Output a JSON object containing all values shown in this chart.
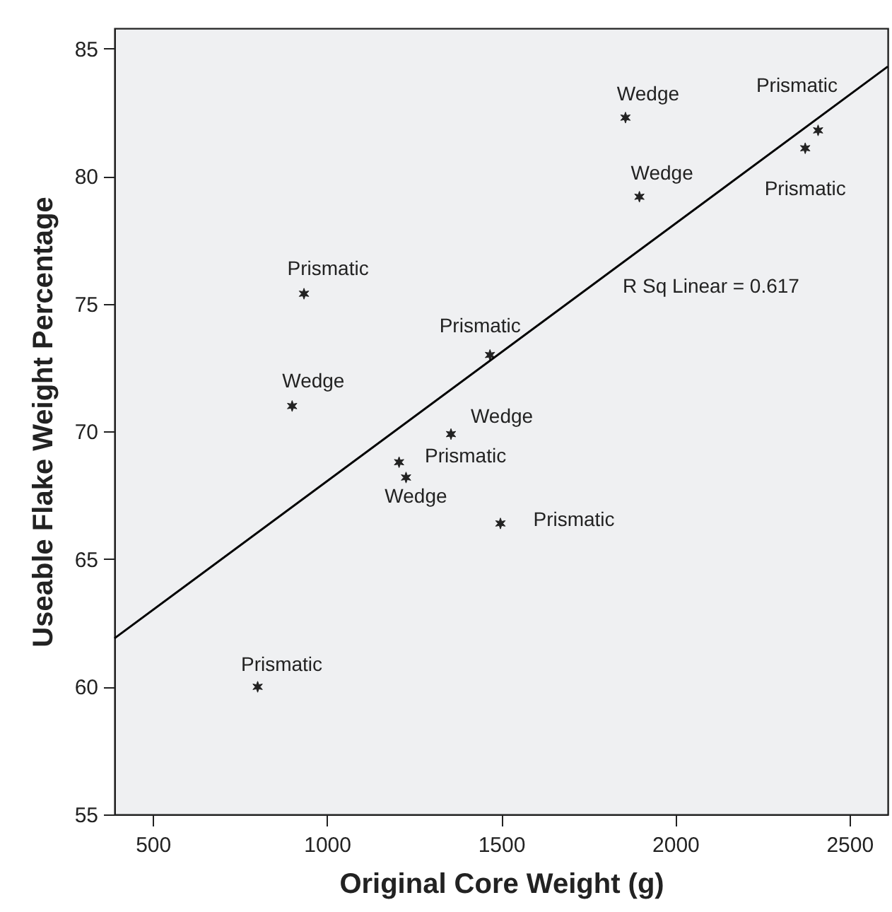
{
  "chart_data": {
    "type": "scatter",
    "xlabel": "Original Core Weight (g)",
    "ylabel": "Useable Flake Weight Percentage",
    "xlim": [
      390,
      2610
    ],
    "xticks": [
      500,
      1000,
      1500,
      2000,
      2500
    ],
    "ylim": [
      55,
      85.8
    ],
    "yticks": [
      55,
      60,
      65,
      70,
      75,
      80,
      85
    ],
    "grid": false,
    "marker": "cross",
    "series": [
      {
        "color": "#222222",
        "x": [
          934,
          1468,
          900,
          1356,
          1207,
          1227,
          1498,
          801,
          1857,
          1897,
          2410,
          2373
        ],
        "values": [
          75.4,
          73.0,
          71.0,
          69.9,
          68.8,
          68.2,
          66.4,
          60.0,
          82.3,
          79.2,
          81.8,
          81.1
        ]
      },
      {
        "type": "line",
        "color": "#000000",
        "line_style": "solid",
        "marker": "none",
        "x": [
          390,
          2610
        ],
        "values": [
          61.9,
          84.3
        ]
      }
    ],
    "annotations": [
      {
        "text": "Prismatic",
        "x": 934,
        "y": 75.4
      },
      {
        "text": "Prismatic",
        "x": 1468,
        "y": 73.0
      },
      {
        "text": "Wedge",
        "x": 900,
        "y": 71.0
      },
      {
        "text": "Wedge",
        "x": 1356,
        "y": 69.9
      },
      {
        "text": "Prismatic",
        "x": 1207,
        "y": 68.8
      },
      {
        "text": "Wedge",
        "x": 1227,
        "y": 68.2
      },
      {
        "text": "Prismatic",
        "x": 1498,
        "y": 66.4
      },
      {
        "text": "Prismatic",
        "x": 801,
        "y": 60.0
      },
      {
        "text": "Wedge",
        "x": 1857,
        "y": 82.3
      },
      {
        "text": "Wedge",
        "x": 1897,
        "y": 79.2
      },
      {
        "text": "Prismatic",
        "x": 2410,
        "y": 81.8
      },
      {
        "text": "Prismatic",
        "x": 2373,
        "y": 81.1
      },
      "R Sq Linear = 0.617"
    ]
  }
}
